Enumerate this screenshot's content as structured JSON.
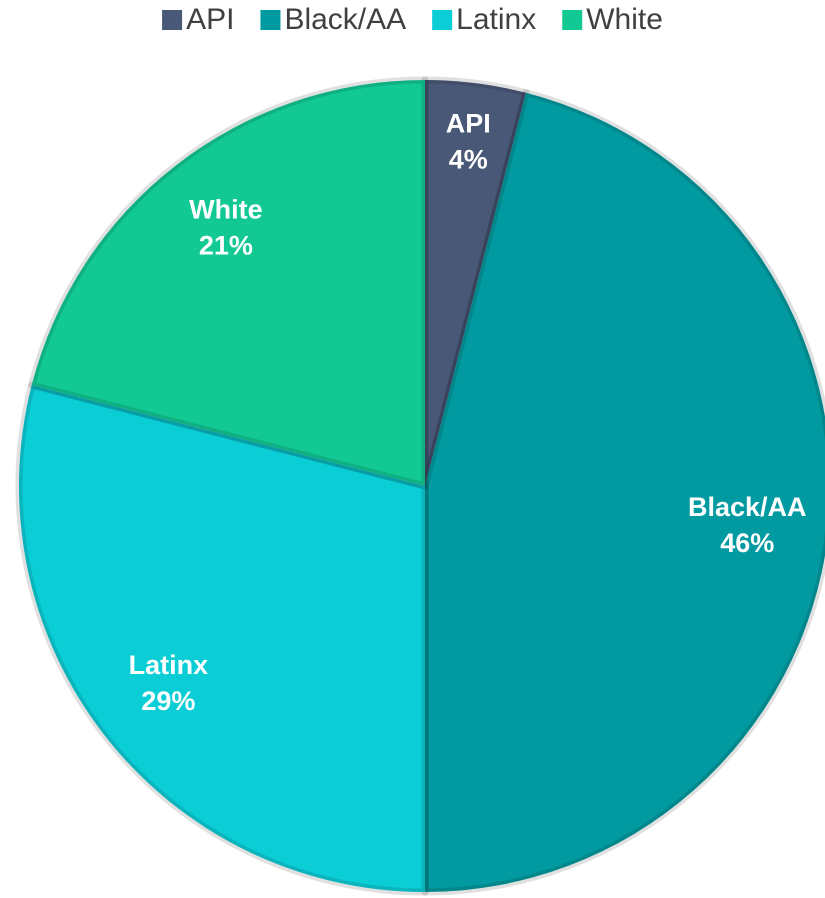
{
  "chart_data": {
    "type": "pie",
    "categories": [
      "API",
      "Black/AA",
      "Latinx",
      "White"
    ],
    "values": [
      4,
      46,
      29,
      21
    ],
    "value_labels": [
      "4%",
      "46%",
      "29%",
      "21%"
    ],
    "colors": [
      "#4a5878",
      "#009aa0",
      "#0bcdd6",
      "#12c994"
    ],
    "legend": "top"
  }
}
